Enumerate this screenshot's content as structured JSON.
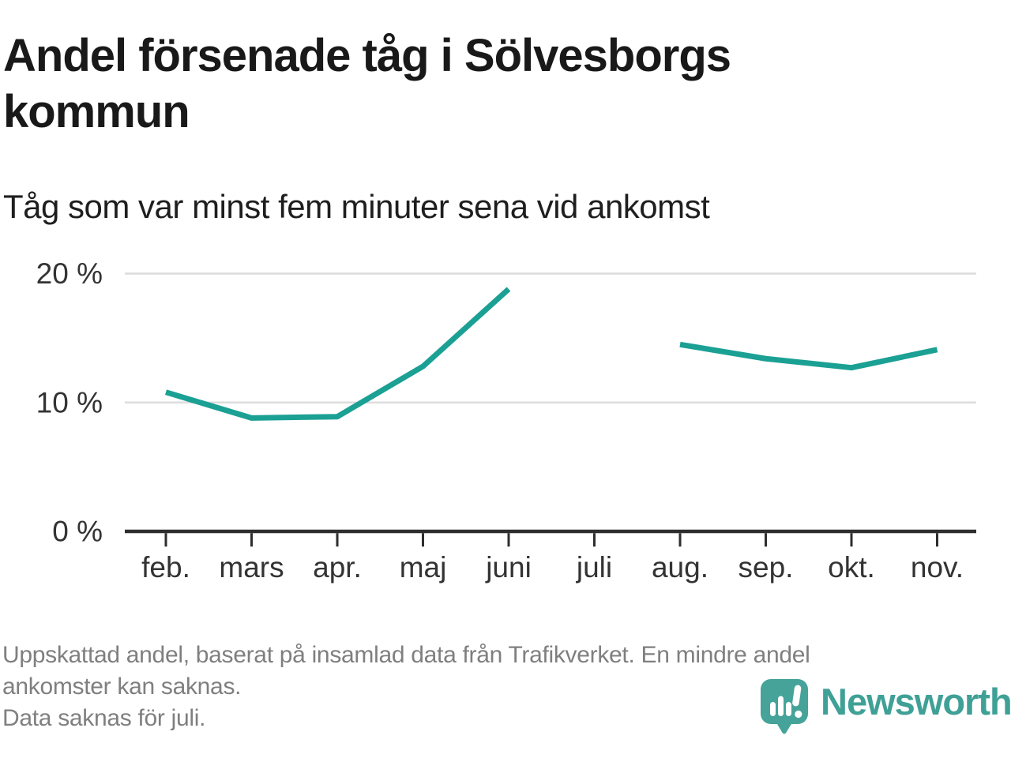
{
  "header": {
    "title": "Andel försenade tåg i Sölvesborgs kommun",
    "subtitle": "Tåg som var minst fem minuter sena vid ankomst"
  },
  "chart_data": {
    "type": "line",
    "title": "Andel försenade tåg i Sölvesborgs kommun",
    "subtitle": "Tåg som var minst fem minuter sena vid ankomst",
    "categories": [
      "feb.",
      "mars",
      "apr.",
      "maj",
      "juni",
      "juli",
      "aug.",
      "sep.",
      "okt.",
      "nov."
    ],
    "series": [
      {
        "name": "Andel försenade tåg",
        "values": [
          10.8,
          8.8,
          8.9,
          12.8,
          18.8,
          null,
          14.5,
          13.4,
          12.7,
          14.1
        ]
      }
    ],
    "unit": "%",
    "ylim": [
      0,
      21.5
    ],
    "y_ticks": [
      {
        "value": 0,
        "label": "0 %"
      },
      {
        "value": 10,
        "label": "10 %"
      },
      {
        "value": 20,
        "label": "20 %"
      }
    ],
    "grid": "horizontal",
    "legend": "none",
    "line_color": "#1ba094",
    "missing_data": "juli"
  },
  "footer": {
    "note_lines": [
      "Uppskattad andel, baserat på insamlad data från Trafikverket. En mindre andel",
      "ankomster kan saknas.",
      "Data saknas för juli."
    ],
    "brand": "Newsworthy"
  },
  "colors": {
    "accent": "#1ba094",
    "logo": "#45a39a",
    "grid": "#dcdcdc",
    "axis": "#2e2e2e",
    "axis_text": "#333333",
    "note_text": "#7f7f7f"
  }
}
